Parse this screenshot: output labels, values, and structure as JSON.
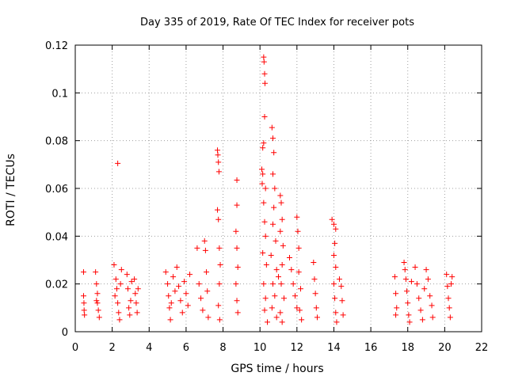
{
  "chart_data": {
    "type": "scatter",
    "title": "Day 335 of 2019, Rate Of TEC Index for receiver pots",
    "xlabel": "GPS time / hours",
    "ylabel": "ROTI / TECUs",
    "xlim": [
      0,
      22
    ],
    "ylim": [
      0,
      0.12
    ],
    "xticks": [
      0,
      2,
      4,
      6,
      8,
      10,
      12,
      14,
      16,
      18,
      20,
      22
    ],
    "yticks": [
      0,
      0.02,
      0.04,
      0.06,
      0.08,
      0.1,
      0.12
    ],
    "xtick_labels": [
      "0",
      "2",
      "4",
      "6",
      "8",
      "10",
      "12",
      "14",
      "16",
      "18",
      "20",
      "22"
    ],
    "ytick_labels": [
      "0",
      "0.02",
      "0.04",
      "0.06",
      "0.08",
      "0.1",
      "0.12"
    ],
    "grid": true,
    "marker": "+",
    "color": "#ff0000",
    "series": [
      {
        "name": "ROTI",
        "points": [
          [
            0.45,
            0.025
          ],
          [
            0.45,
            0.015
          ],
          [
            0.47,
            0.012
          ],
          [
            0.48,
            0.009
          ],
          [
            0.5,
            0.007
          ],
          [
            1.1,
            0.025
          ],
          [
            1.15,
            0.02
          ],
          [
            1.2,
            0.016
          ],
          [
            1.2,
            0.012
          ],
          [
            1.25,
            0.009
          ],
          [
            1.3,
            0.006
          ],
          [
            1.15,
            0.013
          ],
          [
            2.3,
            0.0705
          ],
          [
            2.1,
            0.028
          ],
          [
            2.2,
            0.022
          ],
          [
            2.25,
            0.018
          ],
          [
            2.3,
            0.012
          ],
          [
            2.35,
            0.008
          ],
          [
            2.4,
            0.005
          ],
          [
            2.15,
            0.015
          ],
          [
            2.45,
            0.02
          ],
          [
            2.5,
            0.026
          ],
          [
            2.8,
            0.024
          ],
          [
            2.85,
            0.018
          ],
          [
            2.9,
            0.01
          ],
          [
            2.95,
            0.007
          ],
          [
            3.0,
            0.013
          ],
          [
            3.05,
            0.021
          ],
          [
            3.2,
            0.022
          ],
          [
            3.25,
            0.016
          ],
          [
            3.3,
            0.012
          ],
          [
            3.35,
            0.008
          ],
          [
            3.4,
            0.018
          ],
          [
            4.9,
            0.025
          ],
          [
            5.0,
            0.02
          ],
          [
            5.05,
            0.015
          ],
          [
            5.1,
            0.01
          ],
          [
            5.15,
            0.005
          ],
          [
            5.2,
            0.012
          ],
          [
            5.3,
            0.023
          ],
          [
            5.4,
            0.017
          ],
          [
            5.5,
            0.027
          ],
          [
            5.6,
            0.019
          ],
          [
            5.7,
            0.013
          ],
          [
            5.8,
            0.008
          ],
          [
            5.9,
            0.021
          ],
          [
            6.0,
            0.016
          ],
          [
            6.1,
            0.011
          ],
          [
            6.2,
            0.024
          ],
          [
            6.6,
            0.035
          ],
          [
            6.7,
            0.02
          ],
          [
            6.8,
            0.014
          ],
          [
            6.9,
            0.009
          ],
          [
            7.0,
            0.038
          ],
          [
            7.05,
            0.034
          ],
          [
            7.1,
            0.025
          ],
          [
            7.15,
            0.017
          ],
          [
            7.2,
            0.006
          ],
          [
            7.7,
            0.076
          ],
          [
            7.72,
            0.074
          ],
          [
            7.75,
            0.071
          ],
          [
            7.78,
            0.067
          ],
          [
            7.7,
            0.051
          ],
          [
            7.75,
            0.047
          ],
          [
            7.8,
            0.035
          ],
          [
            7.85,
            0.028
          ],
          [
            7.8,
            0.02
          ],
          [
            7.75,
            0.011
          ],
          [
            7.82,
            0.005
          ],
          [
            8.75,
            0.0635
          ],
          [
            8.75,
            0.053
          ],
          [
            8.7,
            0.042
          ],
          [
            8.75,
            0.035
          ],
          [
            8.8,
            0.027
          ],
          [
            8.7,
            0.02
          ],
          [
            8.75,
            0.013
          ],
          [
            8.8,
            0.008
          ],
          [
            10.2,
            0.115
          ],
          [
            10.22,
            0.113
          ],
          [
            10.25,
            0.108
          ],
          [
            10.27,
            0.104
          ],
          [
            10.25,
            0.09
          ],
          [
            10.2,
            0.079
          ],
          [
            10.15,
            0.077
          ],
          [
            10.1,
            0.068
          ],
          [
            10.15,
            0.066
          ],
          [
            10.12,
            0.062
          ],
          [
            10.3,
            0.06
          ],
          [
            10.2,
            0.054
          ],
          [
            10.25,
            0.046
          ],
          [
            10.3,
            0.04
          ],
          [
            10.15,
            0.033
          ],
          [
            10.35,
            0.028
          ],
          [
            10.2,
            0.02
          ],
          [
            10.3,
            0.014
          ],
          [
            10.25,
            0.009
          ],
          [
            10.4,
            0.004
          ],
          [
            10.65,
            0.0855
          ],
          [
            10.7,
            0.081
          ],
          [
            10.75,
            0.075
          ],
          [
            10.7,
            0.066
          ],
          [
            10.8,
            0.06
          ],
          [
            10.75,
            0.052
          ],
          [
            10.7,
            0.045
          ],
          [
            10.85,
            0.038
          ],
          [
            10.6,
            0.032
          ],
          [
            10.9,
            0.026
          ],
          [
            10.7,
            0.02
          ],
          [
            10.8,
            0.015
          ],
          [
            10.65,
            0.01
          ],
          [
            10.9,
            0.006
          ],
          [
            11.0,
            0.023
          ],
          [
            11.1,
            0.057
          ],
          [
            11.15,
            0.054
          ],
          [
            11.2,
            0.047
          ],
          [
            11.1,
            0.042
          ],
          [
            11.25,
            0.036
          ],
          [
            11.2,
            0.028
          ],
          [
            11.15,
            0.02
          ],
          [
            11.3,
            0.014
          ],
          [
            11.1,
            0.008
          ],
          [
            11.2,
            0.004
          ],
          [
            11.6,
            0.031
          ],
          [
            11.7,
            0.026
          ],
          [
            11.8,
            0.02
          ],
          [
            11.9,
            0.015
          ],
          [
            12.0,
            0.01
          ],
          [
            12.0,
            0.048
          ],
          [
            12.05,
            0.042
          ],
          [
            12.1,
            0.035
          ],
          [
            12.1,
            0.025
          ],
          [
            12.2,
            0.018
          ],
          [
            12.15,
            0.009
          ],
          [
            12.25,
            0.005
          ],
          [
            12.9,
            0.029
          ],
          [
            12.95,
            0.022
          ],
          [
            13.0,
            0.016
          ],
          [
            13.05,
            0.01
          ],
          [
            13.1,
            0.006
          ],
          [
            13.9,
            0.047
          ],
          [
            14.0,
            0.045
          ],
          [
            14.1,
            0.043
          ],
          [
            14.05,
            0.037
          ],
          [
            14.0,
            0.032
          ],
          [
            14.1,
            0.027
          ],
          [
            14.0,
            0.02
          ],
          [
            14.05,
            0.014
          ],
          [
            14.1,
            0.008
          ],
          [
            14.15,
            0.004
          ],
          [
            14.3,
            0.022
          ],
          [
            14.4,
            0.019
          ],
          [
            14.45,
            0.013
          ],
          [
            14.5,
            0.007
          ],
          [
            17.3,
            0.023
          ],
          [
            17.35,
            0.016
          ],
          [
            17.4,
            0.01
          ],
          [
            17.35,
            0.007
          ],
          [
            17.8,
            0.029
          ],
          [
            17.85,
            0.026
          ],
          [
            17.9,
            0.022
          ],
          [
            17.95,
            0.017
          ],
          [
            18.0,
            0.012
          ],
          [
            18.05,
            0.007
          ],
          [
            18.1,
            0.004
          ],
          [
            18.2,
            0.021
          ],
          [
            18.4,
            0.027
          ],
          [
            18.5,
            0.02
          ],
          [
            18.6,
            0.014
          ],
          [
            18.7,
            0.009
          ],
          [
            18.8,
            0.005
          ],
          [
            18.9,
            0.018
          ],
          [
            19.0,
            0.026
          ],
          [
            19.1,
            0.022
          ],
          [
            19.2,
            0.015
          ],
          [
            19.3,
            0.011
          ],
          [
            19.35,
            0.006
          ],
          [
            20.1,
            0.024
          ],
          [
            20.15,
            0.019
          ],
          [
            20.2,
            0.014
          ],
          [
            20.25,
            0.01
          ],
          [
            20.3,
            0.006
          ],
          [
            20.35,
            0.02
          ],
          [
            20.4,
            0.023
          ]
        ]
      }
    ]
  }
}
